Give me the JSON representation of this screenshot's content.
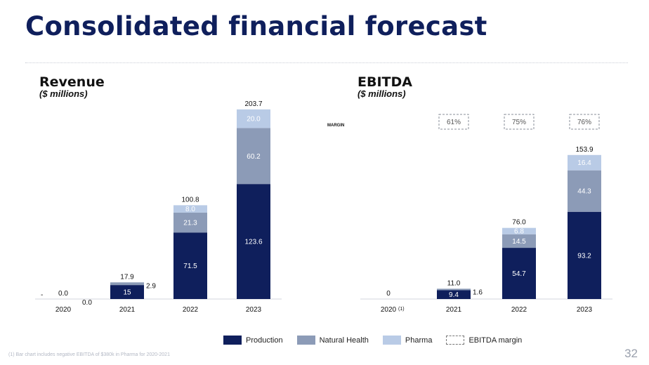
{
  "page": {
    "title": "Consolidated financial forecast",
    "footnote": "(1) Bar chart includes negative EBITDA of $380k in Pharma for 2020-2021",
    "page_number": "32"
  },
  "colors": {
    "production": "#0f1f5c",
    "natural_health": "#8c9bb7",
    "pharma": "#b9cbe6",
    "text": "#111111"
  },
  "legend": {
    "production": "Production",
    "natural_health": "Natural Health",
    "pharma": "Pharma",
    "ebitda_margin": "EBITDA margin"
  },
  "chart_data": [
    {
      "type": "bar",
      "stacked": true,
      "title": "Revenue",
      "subtitle": "($ millions)",
      "categories": [
        "2020",
        "2021",
        "2022",
        "2023"
      ],
      "series": [
        {
          "name": "Production",
          "values": [
            0.0,
            15,
            71.5,
            123.6
          ]
        },
        {
          "name": "Natural Health",
          "values": [
            0.0,
            2.9,
            21.3,
            60.2
          ]
        },
        {
          "name": "Pharma",
          "values": [
            0,
            0,
            8.0,
            20.0
          ]
        }
      ],
      "totals": [
        0.0,
        17.9,
        100.8,
        203.7
      ],
      "bar_labels": [
        [
          "",
          "15",
          "71.5",
          "123.6"
        ],
        [
          "",
          "2.9",
          "21.3",
          "60.2"
        ],
        [
          "",
          "",
          "8.0",
          "20.0"
        ]
      ],
      "side_labels": [
        "0.0",
        "2.9",
        "",
        ""
      ],
      "total_labels": [
        "0.0",
        "17.9",
        "100.8",
        "203.7"
      ],
      "leading_mark": "-",
      "ylim": [
        0,
        215
      ]
    },
    {
      "type": "bar",
      "stacked": true,
      "title": "EBITDA",
      "subtitle": "($ millions)",
      "categories": [
        "2020",
        "2021",
        "2022",
        "2023"
      ],
      "category_note": [
        "(1)",
        "",
        "",
        ""
      ],
      "series": [
        {
          "name": "Production",
          "values": [
            0,
            9.4,
            54.7,
            93.2
          ]
        },
        {
          "name": "Natural Health",
          "values": [
            0,
            1.6,
            14.5,
            44.3
          ]
        },
        {
          "name": "Pharma",
          "values": [
            0,
            0,
            6.8,
            16.4
          ]
        }
      ],
      "totals": [
        0,
        11.0,
        76.0,
        153.9
      ],
      "bar_labels": [
        [
          "",
          "9.4",
          "54.7",
          "93.2"
        ],
        [
          "",
          "",
          "14.5",
          "44.3"
        ],
        [
          "",
          "",
          "6.8",
          "16.4"
        ]
      ],
      "side_labels": [
        "",
        "1.6",
        "",
        ""
      ],
      "total_labels": [
        "0",
        "11.0",
        "76.0",
        "153.9"
      ],
      "margin_label": "MARGIN",
      "ebitda_margin": [
        "",
        "61%",
        "75%",
        "76%"
      ],
      "ylim": [
        0,
        162
      ]
    }
  ]
}
